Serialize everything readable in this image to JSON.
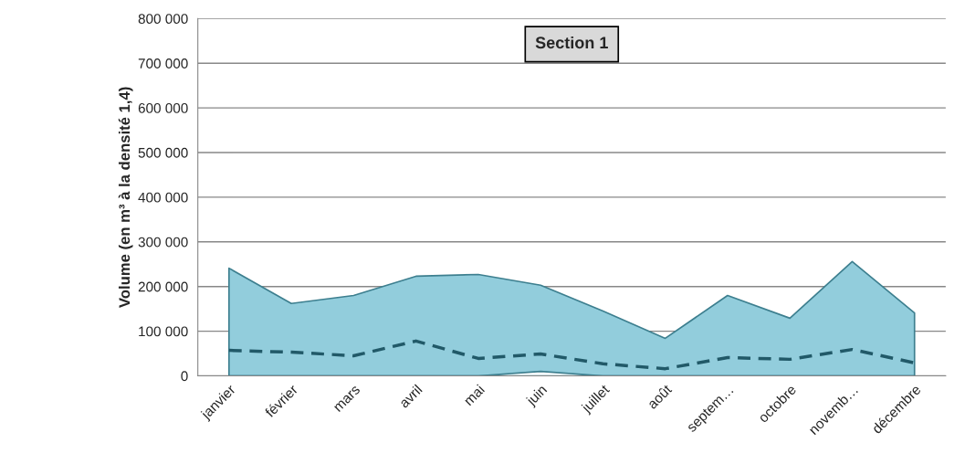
{
  "chart_data": {
    "type": "line",
    "ylabel": "Volume (en m³ à la densité 1,4)",
    "categories": [
      "janvier",
      "février",
      "mars",
      "avril",
      "mai",
      "juin",
      "juillet",
      "août",
      "septem…",
      "octobre",
      "novemb…",
      "décembre"
    ],
    "series": [
      {
        "type": "area",
        "color": "#92cddc",
        "values": [
          241000,
          162000,
          180000,
          223000,
          227000,
          203000,
          145000,
          84000,
          180000,
          129000,
          256000,
          141000
        ]
      },
      {
        "type": "area",
        "color": "#ffffff",
        "values": [
          0,
          0,
          0,
          0,
          0,
          10000,
          0,
          0,
          0,
          0,
          0,
          0
        ]
      },
      {
        "color": "#215968",
        "line_style": "dashed",
        "values": [
          57000,
          53000,
          45000,
          78000,
          39000,
          49000,
          27000,
          16000,
          41000,
          37000,
          59000,
          29000
        ]
      }
    ],
    "ylim": [
      0,
      800000
    ],
    "yticks": [
      {
        "value": 0,
        "label": "0"
      },
      {
        "value": 100000,
        "label": "100 000"
      },
      {
        "value": 200000,
        "label": "200 000"
      },
      {
        "value": 300000,
        "label": "300 000"
      },
      {
        "value": 400000,
        "label": "400 000"
      },
      {
        "value": 500000,
        "label": "500 000"
      },
      {
        "value": 600000,
        "label": "600 000"
      },
      {
        "value": 700000,
        "label": "700 000"
      },
      {
        "value": 800000,
        "label": "800 000"
      }
    ],
    "grid": "y",
    "annotations": [
      "Section 1"
    ]
  }
}
